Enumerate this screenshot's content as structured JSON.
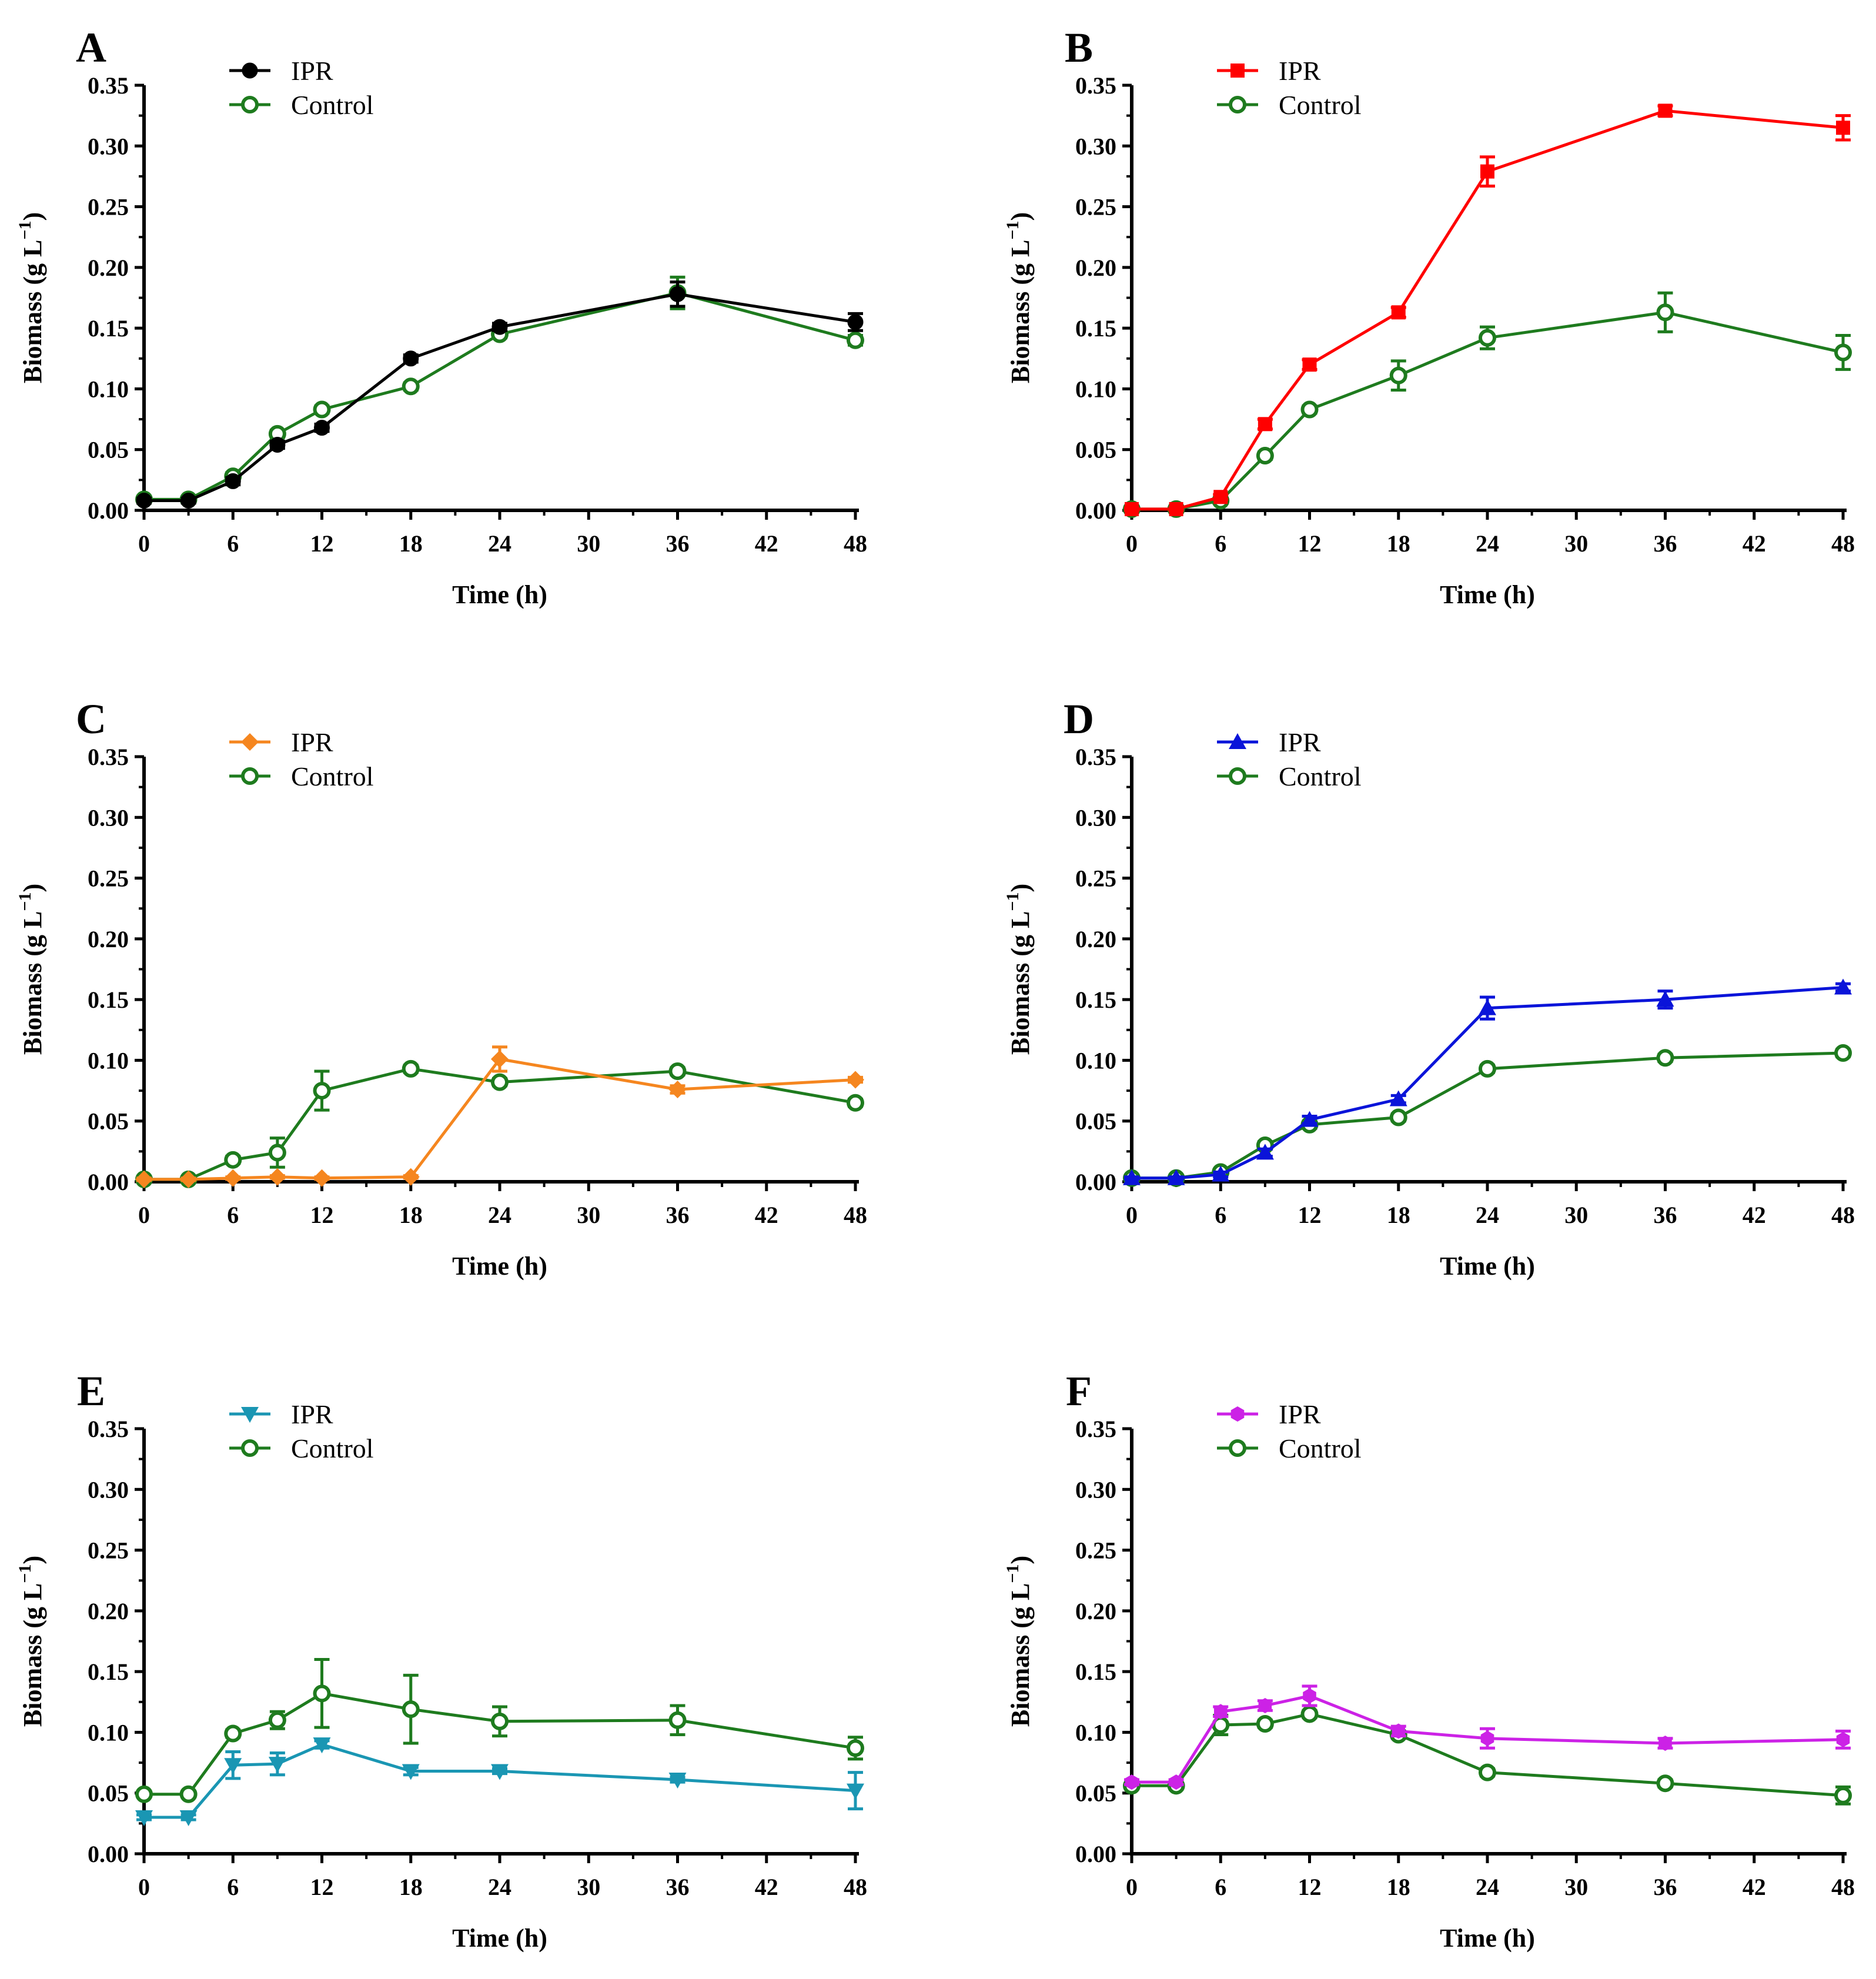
{
  "figure": {
    "panels_order": [
      "A",
      "B",
      "C",
      "D",
      "E",
      "F"
    ]
  },
  "chart_data": [
    {
      "type": "line",
      "panel_label": "A",
      "xlabel": "Time (h)",
      "ylabel": "Biomass (g L",
      "ylabel_sup": "−1",
      "ylabel_close": ")",
      "xlim": [
        0,
        48
      ],
      "ylim": [
        0,
        0.35
      ],
      "xticks": [
        "0",
        "6",
        "12",
        "18",
        "24",
        "30",
        "36",
        "42",
        "48"
      ],
      "yticks": [
        "0.00",
        "0.05",
        "0.10",
        "0.15",
        "0.20",
        "0.25",
        "0.30",
        "0.35"
      ],
      "legend_position": "top-left",
      "series": [
        {
          "name": "IPR",
          "color": "#000000",
          "marker": "circle-filled",
          "x": [
            0,
            3,
            6,
            9,
            12,
            18,
            24,
            36,
            48
          ],
          "y": [
            0.008,
            0.008,
            0.024,
            0.054,
            0.068,
            0.125,
            0.151,
            0.178,
            0.155
          ],
          "err": [
            0.002,
            0.002,
            0.003,
            0.003,
            0.003,
            0.003,
            0.003,
            0.01,
            0.007
          ]
        },
        {
          "name": "Control",
          "color": "#1e7b1e",
          "marker": "circle-open",
          "x": [
            0,
            3,
            6,
            9,
            12,
            18,
            24,
            36,
            48
          ],
          "y": [
            0.009,
            0.009,
            0.028,
            0.063,
            0.083,
            0.102,
            0.145,
            0.179,
            0.14
          ],
          "err": [
            0.002,
            0.002,
            0.003,
            0.003,
            0.003,
            0.003,
            0.003,
            0.013,
            0.004
          ]
        }
      ]
    },
    {
      "type": "line",
      "panel_label": "B",
      "xlabel": "Time (h)",
      "ylabel": "Biomass (g L",
      "ylabel_sup": "−1",
      "ylabel_close": ")",
      "xlim": [
        0,
        48
      ],
      "ylim": [
        0,
        0.35
      ],
      "xticks": [
        "0",
        "6",
        "12",
        "18",
        "24",
        "30",
        "36",
        "42",
        "48"
      ],
      "yticks": [
        "0.00",
        "0.05",
        "0.10",
        "0.15",
        "0.20",
        "0.25",
        "0.30",
        "0.35"
      ],
      "legend_position": "top-left",
      "series": [
        {
          "name": "IPR",
          "color": "#ff0000",
          "marker": "square-filled",
          "x": [
            0,
            3,
            6,
            9,
            12,
            18,
            24,
            36,
            48
          ],
          "y": [
            0.001,
            0.001,
            0.011,
            0.071,
            0.12,
            0.163,
            0.279,
            0.329,
            0.315
          ],
          "err": [
            0.001,
            0.001,
            0.002,
            0.004,
            0.004,
            0.004,
            0.012,
            0.004,
            0.01
          ]
        },
        {
          "name": "Control",
          "color": "#1e7b1e",
          "marker": "circle-open",
          "x": [
            0,
            3,
            6,
            9,
            12,
            18,
            24,
            36,
            48
          ],
          "y": [
            0.001,
            0.001,
            0.008,
            0.045,
            0.083,
            0.111,
            0.142,
            0.163,
            0.13
          ],
          "err": [
            0.001,
            0.001,
            0.002,
            0.003,
            0.003,
            0.012,
            0.009,
            0.016,
            0.014
          ]
        }
      ]
    },
    {
      "type": "line",
      "panel_label": "C",
      "xlabel": "Time (h)",
      "ylabel": "Biomass (g L",
      "ylabel_sup": "−1",
      "ylabel_close": ")",
      "xlim": [
        0,
        48
      ],
      "ylim": [
        0,
        0.35
      ],
      "xticks": [
        "0",
        "6",
        "12",
        "18",
        "24",
        "30",
        "36",
        "42",
        "48"
      ],
      "yticks": [
        "0.00",
        "0.05",
        "0.10",
        "0.15",
        "0.20",
        "0.25",
        "0.30",
        "0.35"
      ],
      "legend_position": "top-left",
      "series": [
        {
          "name": "IPR",
          "color": "#f5861f",
          "marker": "diamond-filled",
          "x": [
            0,
            3,
            6,
            9,
            12,
            18,
            24,
            36,
            48
          ],
          "y": [
            0.002,
            0.002,
            0.003,
            0.004,
            0.003,
            0.004,
            0.101,
            0.076,
            0.084
          ],
          "err": [
            0.001,
            0.001,
            0.001,
            0.001,
            0.001,
            0.001,
            0.01,
            0.003,
            0.002
          ]
        },
        {
          "name": "Control",
          "color": "#1e7b1e",
          "marker": "circle-open",
          "x": [
            0,
            3,
            6,
            9,
            12,
            18,
            24,
            36,
            48
          ],
          "y": [
            0.002,
            0.002,
            0.018,
            0.024,
            0.075,
            0.093,
            0.082,
            0.091,
            0.065
          ],
          "err": [
            0.001,
            0.001,
            0.003,
            0.012,
            0.016,
            0.003,
            0.003,
            0.003,
            0.003
          ]
        }
      ]
    },
    {
      "type": "line",
      "panel_label": "D",
      "xlabel": "Time (h)",
      "ylabel": "Biomass (g L",
      "ylabel_sup": "−1",
      "ylabel_close": ")",
      "xlim": [
        0,
        48
      ],
      "ylim": [
        0,
        0.35
      ],
      "xticks": [
        "0",
        "6",
        "12",
        "18",
        "24",
        "30",
        "36",
        "42",
        "48"
      ],
      "yticks": [
        "0.00",
        "0.05",
        "0.10",
        "0.15",
        "0.20",
        "0.25",
        "0.30",
        "0.35"
      ],
      "legend_position": "top-left",
      "series": [
        {
          "name": "IPR",
          "color": "#0a14d9",
          "marker": "triangle-up-filled",
          "x": [
            0,
            3,
            6,
            9,
            12,
            18,
            24,
            36,
            48
          ],
          "y": [
            0.003,
            0.003,
            0.006,
            0.024,
            0.051,
            0.068,
            0.143,
            0.15,
            0.16
          ],
          "err": [
            0.001,
            0.001,
            0.002,
            0.003,
            0.003,
            0.003,
            0.009,
            0.007,
            0.003
          ]
        },
        {
          "name": "Control",
          "color": "#1e7b1e",
          "marker": "circle-open",
          "x": [
            0,
            3,
            6,
            9,
            12,
            18,
            24,
            36,
            48
          ],
          "y": [
            0.003,
            0.003,
            0.008,
            0.03,
            0.047,
            0.053,
            0.093,
            0.102,
            0.106
          ],
          "err": [
            0.001,
            0.001,
            0.002,
            0.003,
            0.003,
            0.003,
            0.003,
            0.003,
            0.003
          ]
        }
      ]
    },
    {
      "type": "line",
      "panel_label": "E",
      "xlabel": "Time (h)",
      "ylabel": "Biomass (g L",
      "ylabel_sup": "−1",
      "ylabel_close": ")",
      "xlim": [
        0,
        48
      ],
      "ylim": [
        0,
        0.35
      ],
      "xticks": [
        "0",
        "6",
        "12",
        "18",
        "24",
        "30",
        "36",
        "42",
        "48"
      ],
      "yticks": [
        "0.00",
        "0.05",
        "0.10",
        "0.15",
        "0.20",
        "0.25",
        "0.30",
        "0.35"
      ],
      "legend_position": "top-left",
      "series": [
        {
          "name": "IPR",
          "color": "#1a96b3",
          "marker": "triangle-down-filled",
          "x": [
            0,
            3,
            6,
            9,
            12,
            18,
            24,
            36,
            48
          ],
          "y": [
            0.03,
            0.03,
            0.073,
            0.074,
            0.09,
            0.068,
            0.068,
            0.061,
            0.052
          ],
          "err": [
            0.002,
            0.002,
            0.011,
            0.009,
            0.003,
            0.003,
            0.002,
            0.002,
            0.015
          ]
        },
        {
          "name": "Control",
          "color": "#1e7b1e",
          "marker": "circle-open",
          "x": [
            0,
            3,
            6,
            9,
            12,
            18,
            24,
            36,
            48
          ],
          "y": [
            0.049,
            0.049,
            0.099,
            0.11,
            0.132,
            0.119,
            0.109,
            0.11,
            0.087
          ],
          "err": [
            0.002,
            0.002,
            0.003,
            0.007,
            0.028,
            0.028,
            0.012,
            0.012,
            0.009
          ]
        }
      ]
    },
    {
      "type": "line",
      "panel_label": "F",
      "xlabel": "Time (h)",
      "ylabel": "Biomass (g L",
      "ylabel_sup": "−1",
      "ylabel_close": ")",
      "xlim": [
        0,
        48
      ],
      "ylim": [
        0,
        0.35
      ],
      "xticks": [
        "0",
        "6",
        "12",
        "18",
        "24",
        "30",
        "36",
        "42",
        "48"
      ],
      "yticks": [
        "0.00",
        "0.05",
        "0.10",
        "0.15",
        "0.20",
        "0.25",
        "0.30",
        "0.35"
      ],
      "legend_position": "top-left",
      "series": [
        {
          "name": "IPR",
          "color": "#cc22e6",
          "marker": "hexagon-filled",
          "x": [
            0,
            3,
            6,
            9,
            12,
            18,
            24,
            36,
            48
          ],
          "y": [
            0.059,
            0.059,
            0.117,
            0.122,
            0.13,
            0.101,
            0.095,
            0.091,
            0.094
          ],
          "err": [
            0.002,
            0.002,
            0.004,
            0.004,
            0.008,
            0.004,
            0.008,
            0.004,
            0.007
          ]
        },
        {
          "name": "Control",
          "color": "#1e7b1e",
          "marker": "circle-open",
          "x": [
            0,
            3,
            6,
            9,
            12,
            18,
            24,
            36,
            48
          ],
          "y": [
            0.056,
            0.056,
            0.106,
            0.107,
            0.115,
            0.098,
            0.067,
            0.058,
            0.048
          ],
          "err": [
            0.002,
            0.002,
            0.008,
            0.003,
            0.003,
            0.003,
            0.003,
            0.003,
            0.007
          ]
        }
      ]
    }
  ]
}
